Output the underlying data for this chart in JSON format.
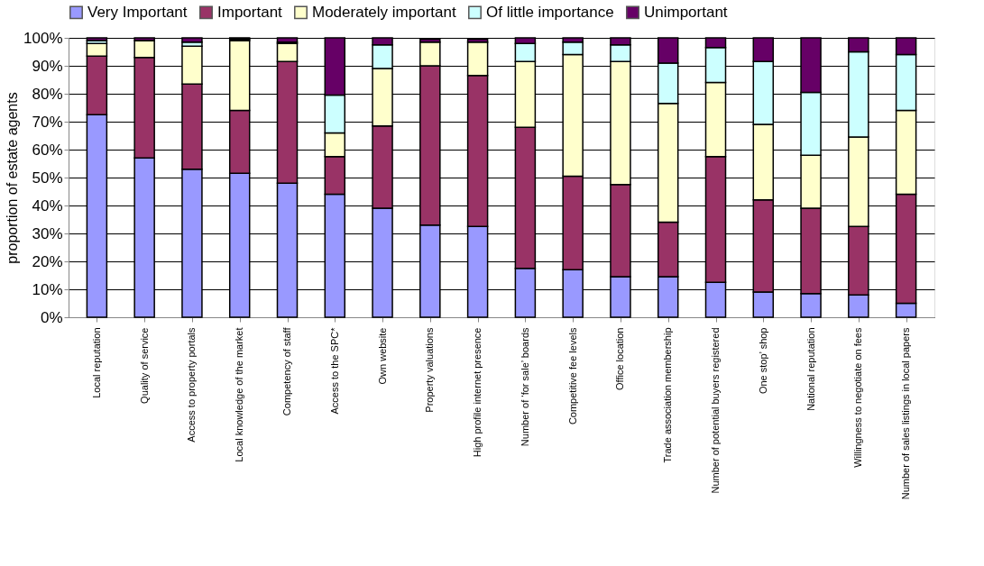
{
  "chart_data": {
    "type": "bar",
    "stacked": true,
    "ylabel": "proportion of estate agents",
    "categories": [
      "Local reputation",
      "Quality of service",
      "Access to property portals",
      "Local knowledge of the market",
      "Competency of staff",
      "Access to the SPC*",
      "Own website",
      "Property valuations",
      "High profile internet presence",
      "Number of ‘for sale’ boards",
      "Competitive fee levels",
      "Office location",
      "Trade association membership",
      "Number of potential buyers registered",
      "One stop’ shop",
      "National reputation",
      "Willingness to negotiate on fees",
      "Number of sales listings in local papers"
    ],
    "series": [
      {
        "name": "Very Important",
        "color": "#9999ff",
        "values": [
          72.5,
          57,
          53,
          51.5,
          48,
          44,
          39,
          33,
          32.5,
          17.5,
          17,
          14.5,
          14.5,
          12.5,
          9,
          8.5,
          8,
          5
        ]
      },
      {
        "name": "Important",
        "color": "#993366",
        "values": [
          21,
          36,
          30.5,
          22.5,
          43.5,
          13.5,
          29.5,
          57,
          54,
          50.5,
          33.5,
          33,
          19.5,
          45,
          33,
          30.5,
          24.5,
          39
        ]
      },
      {
        "name": "Moderately important",
        "color": "#ffffcc",
        "values": [
          4.5,
          6,
          13.5,
          25,
          6.5,
          8.5,
          20.5,
          8.5,
          12,
          23.5,
          43.5,
          44,
          42.5,
          26.5,
          27,
          19,
          32,
          30
        ]
      },
      {
        "name": "Of little importance",
        "color": "#ccffff",
        "values": [
          1,
          0,
          1.5,
          0.5,
          0.5,
          13.5,
          8.5,
          null,
          null,
          6.5,
          4.5,
          6,
          14.5,
          12.5,
          22.5,
          22.5,
          30.5,
          20
        ]
      },
      {
        "name": "Unimportant",
        "color": "#660066",
        "values": [
          1,
          1,
          1.5,
          0.5,
          1.5,
          20.5,
          2.5,
          1,
          1,
          2,
          1.5,
          2.5,
          9,
          3.5,
          8.5,
          19.5,
          5,
          6
        ]
      }
    ],
    "ylim": [
      0,
      100
    ],
    "yticks": [
      {
        "value": 0,
        "label": "0%"
      },
      {
        "value": 10,
        "label": "10%"
      },
      {
        "value": 20,
        "label": "20%"
      },
      {
        "value": 30,
        "label": "30%"
      },
      {
        "value": 40,
        "label": "40%"
      },
      {
        "value": 50,
        "label": "50%"
      },
      {
        "value": 60,
        "label": "60%"
      },
      {
        "value": 70,
        "label": "70%"
      },
      {
        "value": 80,
        "label": "80%"
      },
      {
        "value": 90,
        "label": "90%"
      },
      {
        "value": 100,
        "label": "100%"
      }
    ],
    "grid": "y",
    "legend": "top"
  }
}
